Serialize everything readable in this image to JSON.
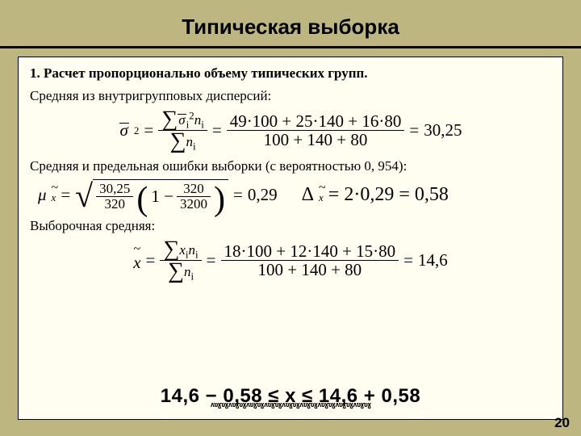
{
  "title": "Типическая выборка",
  "section": "1. Расчет пропорционально объему типических групп.",
  "line1": "Средняя из внутригрупповых дисперсий:",
  "line2": "Средняя и предельная ошибки выборки (с вероятностью 0, 954):",
  "line3": "Выборочная средняя:",
  "page_number": "20",
  "formula_variance": {
    "lhs_symbol": "σ",
    "lhs_exp": "2",
    "middle_num": "∑σᵢ²nᵢ",
    "middle_den": "∑nᵢ",
    "calc_num": "49·100 + 25·140 + 16·80",
    "calc_den": "100 + 140 + 80",
    "result": "30,25"
  },
  "formula_mu": {
    "lhs": "μ",
    "frac1_num": "30,25",
    "frac1_den": "320",
    "frac2_num": "320",
    "frac2_den": "3200",
    "result": "0,29"
  },
  "formula_delta": {
    "lhs": "Δ",
    "expr": "2·0,29",
    "result": "0,58"
  },
  "formula_mean": {
    "lhs": "x",
    "middle_num": "∑xᵢnᵢ",
    "middle_den": "∑nᵢ",
    "calc_num": "18·100 + 12·140 + 15·80",
    "calc_den": "100 + 140 + 80",
    "result": "14,6"
  },
  "final_inequality": "14,6 − 0,58 ≤ x ≤ 14,6 + 0,58",
  "colors": {
    "page_bg": "#bdb681",
    "box_bg": "#fffef0"
  }
}
